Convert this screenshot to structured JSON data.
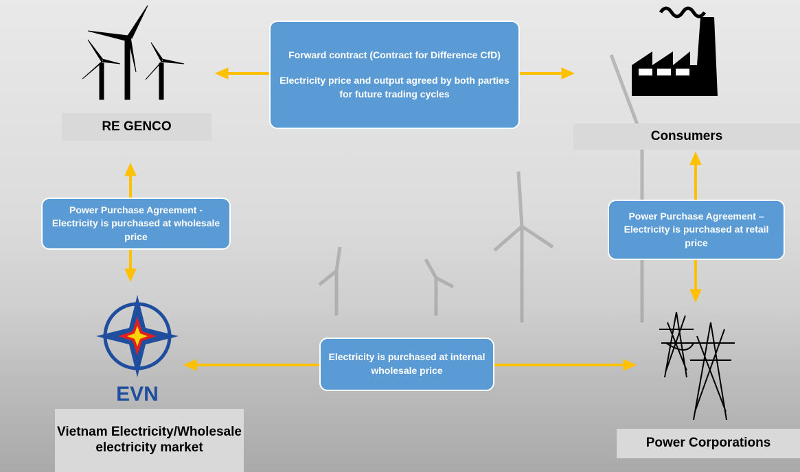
{
  "nodes": [
    {
      "label": "RE GENCO"
    },
    {
      "label": "Consumers"
    },
    {
      "logo": "EVN",
      "label": "Vietnam Electricity/Wholesale electricity market"
    },
    {
      "label": "Power Corporations"
    }
  ],
  "edges": [
    {
      "label": [
        "Forward contract (Contract for Difference CfD)",
        "Electricity price and output agreed by both parties for future trading cycles"
      ]
    },
    {
      "label": [
        "Power Purchase Agreement - Electricity is purchased at wholesale price"
      ]
    },
    {
      "label": [
        "Power Purchase Agreement – Electricity is purchased at retail price"
      ]
    },
    {
      "label": [
        "Electricity is purchased at internal wholesale price"
      ]
    }
  ]
}
